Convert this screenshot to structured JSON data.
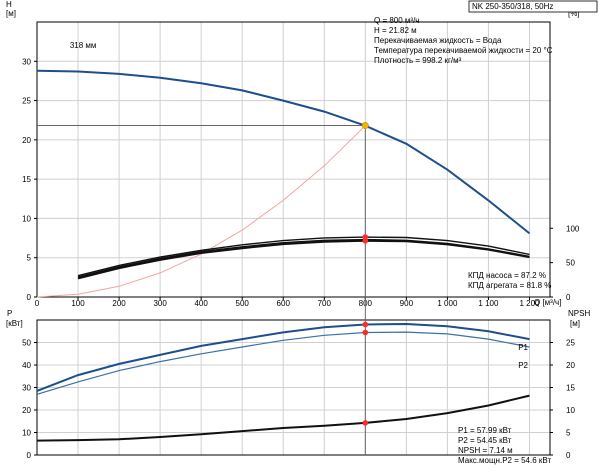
{
  "colors": {
    "blue": "#1f4e8c",
    "light_blue": "#3d6fa8",
    "black": "#111111",
    "red_curve": "#f4a3a3",
    "duty_point": "#f5b400",
    "marker": "#ff2a2a",
    "grid": "#d0d0d0"
  },
  "model_label": "NK 250-350/318, 50Hz",
  "chart_data": [
    {
      "type": "line",
      "title": "NK 250-350/318, 50Hz",
      "xlabel": "Q [м³/ч]",
      "x_ticks": [
        "100",
        "200",
        "300",
        "400",
        "500",
        "600",
        "700",
        "800",
        "900",
        "1 000",
        "1 100",
        "1 200"
      ],
      "left_axis": {
        "label": "H",
        "unit": "[м]",
        "ticks": [
          "0",
          "5",
          "10",
          "15",
          "20",
          "25",
          "30"
        ],
        "ylim": [
          0,
          35
        ]
      },
      "right_axis": {
        "label": "eta",
        "unit": "[%]",
        "ticks": [
          "0",
          "50",
          "100"
        ],
        "ylim": [
          0,
          400
        ]
      },
      "xlim": [
        0,
        1250
      ],
      "grid": true,
      "impeller_label": "318 мм",
      "info_lines": [
        "Q = 800 м³/ч",
        "H = 21.82 м",
        "Перекачиваемая жидкость = Вода",
        "Температура перекачиваемой жидкости = 20 °C",
        "Плотность = 998.2 кг/м³"
      ],
      "eff_lines": [
        "КПД насоса = 87.2 %",
        "КПД агрегата = 81.8 %"
      ],
      "duty_point": {
        "x": 800,
        "y": 21.82
      },
      "series": [
        {
          "name": "H",
          "x": [
            0,
            100,
            200,
            300,
            400,
            500,
            600,
            700,
            800,
            900,
            1000,
            1100,
            1200
          ],
          "values": [
            28.8,
            28.7,
            28.4,
            27.9,
            27.2,
            26.3,
            25.0,
            23.6,
            21.8,
            19.5,
            16.2,
            12.3,
            8.1
          ]
        },
        {
          "name": "system",
          "x": [
            0,
            100,
            200,
            300,
            400,
            500,
            600,
            700,
            800
          ],
          "values": [
            0,
            0.34,
            1.36,
            3.07,
            5.46,
            8.52,
            12.3,
            16.7,
            21.8
          ]
        },
        {
          "name": "eta_pump",
          "axis": "right",
          "x": [
            100,
            200,
            300,
            400,
            500,
            600,
            700,
            800,
            900,
            1000,
            1100,
            1200
          ],
          "values": [
            31,
            46,
            58,
            68,
            76,
            82,
            86,
            87.2,
            86.5,
            82,
            74,
            62
          ]
        },
        {
          "name": "eta_pump_2",
          "axis": "right",
          "x": [
            100,
            200,
            300,
            400,
            500,
            600,
            700,
            800,
            900,
            1000,
            1100,
            1200
          ],
          "values": [
            29,
            44,
            56,
            66,
            73,
            79,
            82.5,
            83.5,
            82.5,
            78,
            70,
            59
          ]
        },
        {
          "name": "eta_unit",
          "axis": "right",
          "x": [
            100,
            200,
            300,
            400,
            500,
            600,
            700,
            800,
            900,
            1000,
            1100,
            1200
          ],
          "values": [
            27,
            42,
            54,
            64,
            71,
            77,
            80.5,
            81.8,
            81,
            76.5,
            69,
            58
          ]
        }
      ],
      "markers": [
        {
          "x": 800,
          "y": 87.2,
          "axis": "right"
        },
        {
          "x": 800,
          "y": 81.8,
          "axis": "right"
        }
      ]
    },
    {
      "type": "line",
      "xlabel": "Q [м³/ч]",
      "left_axis": {
        "label": "P",
        "unit": "[кВт]",
        "ticks": [
          "0",
          "10",
          "20",
          "30",
          "40",
          "50"
        ],
        "ylim": [
          0,
          60
        ]
      },
      "right_axis": {
        "label": "NPSH",
        "unit": "[м]",
        "ticks": [
          "0",
          "5",
          "10",
          "15",
          "20",
          "25"
        ],
        "ylim": [
          0,
          30
        ]
      },
      "xlim": [
        0,
        1250
      ],
      "grid": true,
      "info_lines": [
        "P1 = 57.99 кВт",
        "P2 = 54.45 кВт",
        "NPSH = 7.14 м",
        "Макс.мощн.P2 = 54.6 кВт"
      ],
      "series": [
        {
          "name": "P1",
          "x": [
            0,
            100,
            200,
            300,
            400,
            500,
            600,
            700,
            800,
            900,
            1000,
            1100,
            1200
          ],
          "values": [
            28.5,
            35.5,
            40.5,
            44.5,
            48.5,
            51.5,
            54.5,
            56.8,
            58.0,
            58.2,
            57.2,
            55.0,
            51.5
          ]
        },
        {
          "name": "P2",
          "x": [
            0,
            100,
            200,
            300,
            400,
            500,
            600,
            700,
            800,
            900,
            1000,
            1100,
            1200
          ],
          "values": [
            27.0,
            32.5,
            37.5,
            41.5,
            45.0,
            48.0,
            51.0,
            53.2,
            54.45,
            54.6,
            53.8,
            51.5,
            48.0
          ]
        },
        {
          "name": "NPSH",
          "axis": "right",
          "x": [
            0,
            100,
            200,
            300,
            400,
            500,
            600,
            700,
            800,
            900,
            1000,
            1100,
            1200
          ],
          "values": [
            3.2,
            3.3,
            3.5,
            4.0,
            4.6,
            5.3,
            6.0,
            6.5,
            7.14,
            8.0,
            9.3,
            11.0,
            13.2
          ]
        }
      ],
      "markers": [
        {
          "x": 800,
          "y": 58.0
        },
        {
          "x": 800,
          "y": 54.45
        },
        {
          "x": 800,
          "y": 7.14,
          "axis": "right"
        }
      ]
    }
  ]
}
